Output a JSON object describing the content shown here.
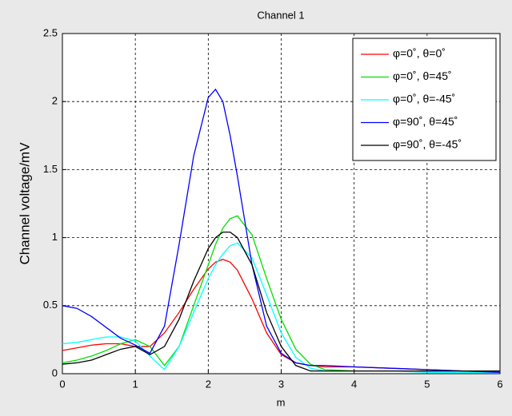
{
  "chart_data": {
    "type": "line",
    "title": "Channel 1",
    "x_label": "m",
    "y_label": "Channel voltage/mV",
    "x": [
      0,
      0.2,
      0.4,
      0.6,
      0.8,
      1.0,
      1.2,
      1.4,
      1.6,
      1.8,
      2.0,
      2.1,
      2.2,
      2.3,
      2.4,
      2.6,
      2.8,
      3.0,
      3.2,
      3.4,
      3.6,
      4.0,
      4.5,
      5.0,
      5.5,
      6.0
    ],
    "series": [
      {
        "name": "φ=0˚, θ=0˚",
        "color": "#ff0000",
        "values": [
          0.17,
          0.19,
          0.21,
          0.22,
          0.22,
          0.2,
          0.2,
          0.3,
          0.45,
          0.62,
          0.77,
          0.82,
          0.84,
          0.82,
          0.76,
          0.55,
          0.3,
          0.14,
          0.08,
          0.06,
          0.05,
          0.05,
          0.04,
          0.03,
          0.02,
          0.02
        ]
      },
      {
        "name": "φ=0˚, θ=45˚",
        "color": "#00e000",
        "values": [
          0.08,
          0.1,
          0.13,
          0.17,
          0.22,
          0.25,
          0.2,
          0.06,
          0.2,
          0.5,
          0.8,
          0.95,
          1.07,
          1.14,
          1.16,
          1.02,
          0.7,
          0.4,
          0.18,
          0.07,
          0.03,
          0.02,
          0.02,
          0.02,
          0.02,
          0.02
        ]
      },
      {
        "name": "φ=0˚, θ=-45˚",
        "color": "#00ffff",
        "values": [
          0.22,
          0.23,
          0.25,
          0.27,
          0.27,
          0.24,
          0.13,
          0.03,
          0.2,
          0.45,
          0.7,
          0.8,
          0.88,
          0.94,
          0.96,
          0.85,
          0.58,
          0.3,
          0.12,
          0.04,
          0.02,
          0.02,
          0.02,
          0.01,
          0.01,
          0.01
        ]
      },
      {
        "name": "φ=90˚, θ=45˚",
        "color": "#0000ff",
        "values": [
          0.5,
          0.48,
          0.42,
          0.34,
          0.26,
          0.21,
          0.15,
          0.35,
          0.95,
          1.6,
          2.03,
          2.09,
          2.0,
          1.75,
          1.45,
          0.8,
          0.35,
          0.15,
          0.08,
          0.06,
          0.06,
          0.05,
          0.04,
          0.03,
          0.02,
          0.01
        ]
      },
      {
        "name": "φ=90˚, θ=-45˚",
        "color": "#000000",
        "values": [
          0.07,
          0.08,
          0.1,
          0.14,
          0.18,
          0.2,
          0.14,
          0.2,
          0.4,
          0.68,
          0.92,
          1.0,
          1.04,
          1.04,
          1.0,
          0.8,
          0.45,
          0.2,
          0.06,
          0.02,
          0.02,
          0.02,
          0.02,
          0.02,
          0.02,
          0.02
        ]
      }
    ],
    "xlim": [
      0,
      6
    ],
    "xticks": [
      0,
      1,
      2,
      3,
      4,
      5,
      6
    ],
    "ylim": [
      0,
      2.5
    ],
    "yticks": [
      0,
      0.5,
      1,
      1.5,
      2,
      2.5
    ],
    "grid": true,
    "legend": "northeast"
  }
}
